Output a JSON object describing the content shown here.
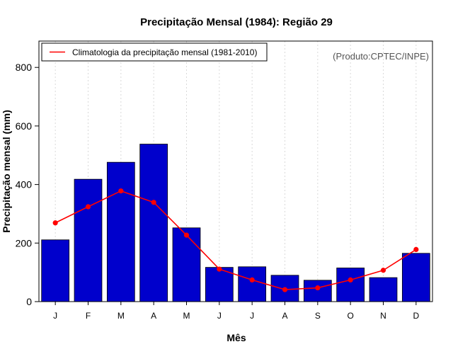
{
  "chart_data": {
    "type": "bar",
    "title": "Precipitação Mensal (1984): Região 29",
    "xlabel": "Mês",
    "ylabel": "Precipitação mensal (mm)",
    "source": "(Produto:CPTEC/INPE)",
    "ylim": [
      0,
      890
    ],
    "yticks": [
      "0",
      "200",
      "400",
      "600",
      "800"
    ],
    "categories": [
      "J",
      "F",
      "M",
      "A",
      "M",
      "J",
      "J",
      "A",
      "S",
      "O",
      "N",
      "D"
    ],
    "series": [
      {
        "name": "Precipitação mensal (1984)",
        "type": "bar",
        "color": "#0000cc",
        "values": [
          211,
          418,
          476,
          538,
          252,
          117,
          119,
          90,
          73,
          115,
          82,
          165
        ]
      },
      {
        "name": "Climatologia da precipitação mensal (1981-2010)",
        "type": "line",
        "color": "#ff0000",
        "values": [
          269,
          324,
          378,
          339,
          227,
          111,
          74,
          41,
          47,
          74,
          107,
          178
        ]
      }
    ],
    "legend": {
      "position": "top-left",
      "entries": [
        "Climatologia da precipitação mensal (1981-2010)"
      ]
    },
    "grid": true
  }
}
